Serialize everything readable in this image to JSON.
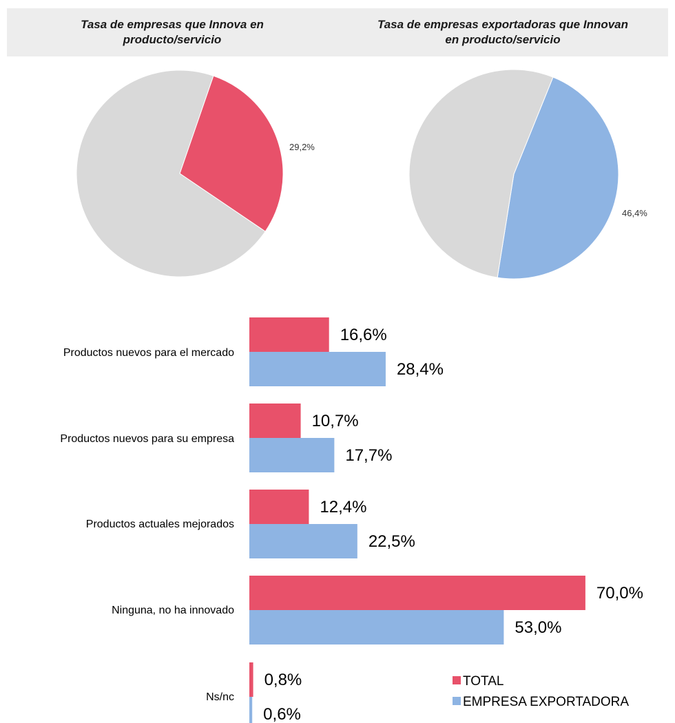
{
  "colors": {
    "total": "#e8516a",
    "exporter": "#8eb4e3",
    "pie_remainder": "#d9d9d9",
    "title_band": "#ededed"
  },
  "chart_data": [
    {
      "type": "pie",
      "title": "Tasa de empresas que Innova en producto/servicio",
      "slices": [
        {
          "value": 29.2,
          "label": "29,2%",
          "color": "#e8516a"
        },
        {
          "value": 70.8,
          "label": "",
          "color": "#d9d9d9"
        }
      ]
    },
    {
      "type": "pie",
      "title": "Tasa de empresas exportadoras que Innovan en producto/servicio",
      "slices": [
        {
          "value": 46.4,
          "label": "46,4%",
          "color": "#8eb4e3"
        },
        {
          "value": 53.6,
          "label": "",
          "color": "#d9d9d9"
        }
      ]
    },
    {
      "type": "bar",
      "orientation": "horizontal",
      "categories": [
        "Productos nuevos para el mercado",
        "Productos nuevos para su empresa",
        "Productos actuales mejorados",
        "Ninguna, no ha innovado",
        "Ns/nc"
      ],
      "series": [
        {
          "name": "TOTAL",
          "color": "#e8516a",
          "values": [
            16.6,
            10.7,
            12.4,
            70.0,
            0.8
          ],
          "labels": [
            "16,6%",
            "10,7%",
            "12,4%",
            "70,0%",
            "0,8%"
          ]
        },
        {
          "name": "EMPRESA EXPORTADORA",
          "color": "#8eb4e3",
          "values": [
            28.4,
            17.7,
            22.5,
            53.0,
            0.6
          ],
          "labels": [
            "28,4%",
            "17,7%",
            "22,5%",
            "53,0%",
            "0,6%"
          ]
        }
      ],
      "legend_position": "bottom-right",
      "grid": false
    }
  ]
}
